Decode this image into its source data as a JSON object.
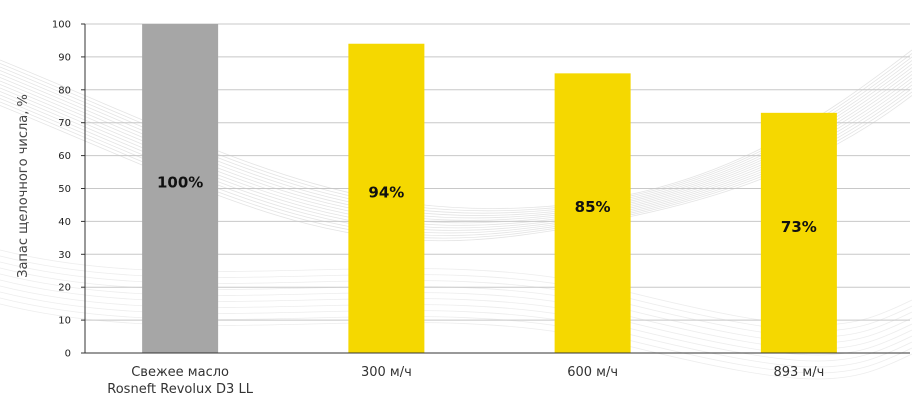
{
  "chart_data": {
    "type": "bar",
    "categories": [
      "Свежее масло Rosneft Revolux D3 LL",
      "300 м/ч",
      "600 м/ч",
      "893 м/ч"
    ],
    "category_lines": [
      [
        "Свежее масло",
        "Rosneft Revolux D3 LL"
      ],
      [
        "300 м/ч"
      ],
      [
        "600 м/ч"
      ],
      [
        "893 м/ч"
      ]
    ],
    "values": [
      100,
      94,
      85,
      73
    ],
    "data_labels": [
      "100%",
      "94%",
      "85%",
      "73%"
    ],
    "bar_colors": [
      "#a6a6a6",
      "#f5d800",
      "#f5d800",
      "#f5d800"
    ],
    "ylabel": "Запас щелочного числа, %",
    "xlabel": "",
    "ylim": [
      0,
      100
    ],
    "yticks": [
      0,
      10,
      20,
      30,
      40,
      50,
      60,
      70,
      80,
      90,
      100
    ],
    "grid": true,
    "gridline_color": "#c8c8c8"
  }
}
